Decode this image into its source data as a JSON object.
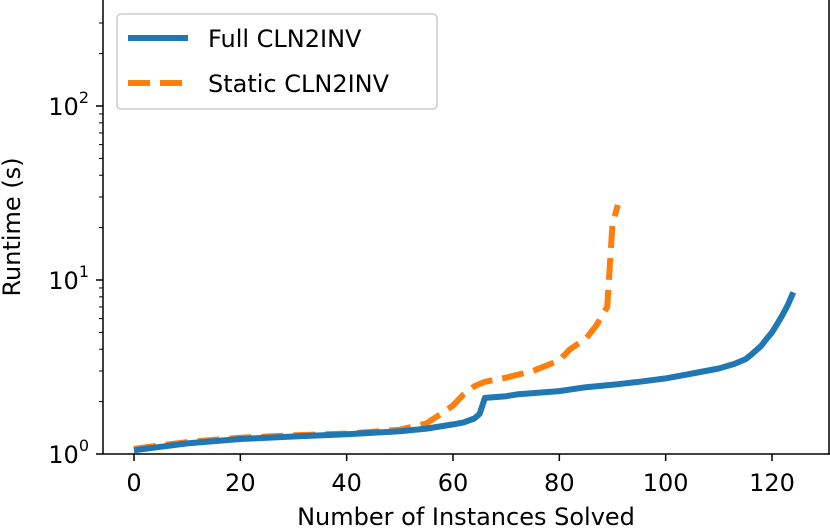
{
  "chart_data": {
    "type": "line",
    "title": "",
    "xlabel": "Number of Instances Solved",
    "ylabel": "Runtime (s)",
    "xlim": [
      -5,
      130
    ],
    "ylim": [
      1,
      400
    ],
    "yscale": "log",
    "x_ticks": [
      0,
      20,
      40,
      60,
      80,
      100,
      120
    ],
    "x_tick_labels": [
      "0",
      "20",
      "40",
      "60",
      "80",
      "100",
      "120"
    ],
    "y_ticks": [
      {
        "value": 1,
        "base": "10",
        "exp": "0"
      },
      {
        "value": 10,
        "base": "10",
        "exp": "1"
      },
      {
        "value": 100,
        "base": "10",
        "exp": "2"
      }
    ],
    "legend_position": "top-left",
    "series": [
      {
        "name": "Full CLN2INV",
        "color": "#1f77b4",
        "dash": "solid",
        "x": [
          0,
          5,
          10,
          20,
          30,
          40,
          50,
          55,
          60,
          62,
          64,
          65,
          66,
          70,
          72,
          80,
          85,
          90,
          95,
          100,
          105,
          110,
          113,
          115,
          116,
          118,
          119,
          120,
          121,
          122,
          123,
          124
        ],
        "y": [
          1.05,
          1.1,
          1.15,
          1.22,
          1.26,
          1.3,
          1.35,
          1.4,
          1.48,
          1.52,
          1.6,
          1.7,
          2.1,
          2.15,
          2.2,
          2.3,
          2.42,
          2.5,
          2.6,
          2.72,
          2.9,
          3.1,
          3.3,
          3.5,
          3.7,
          4.2,
          4.6,
          5.0,
          5.6,
          6.3,
          7.2,
          8.5
        ]
      },
      {
        "name": "Static CLN2INV",
        "color": "#ff7f0e",
        "dash": "dashed",
        "x": [
          0,
          5,
          10,
          20,
          30,
          40,
          50,
          55,
          58,
          60,
          62,
          64,
          66,
          70,
          75,
          80,
          82,
          85,
          87,
          89,
          90,
          91
        ],
        "y": [
          1.07,
          1.12,
          1.17,
          1.24,
          1.28,
          1.31,
          1.38,
          1.5,
          1.72,
          1.9,
          2.2,
          2.45,
          2.6,
          2.75,
          3.0,
          3.45,
          4.0,
          4.6,
          5.5,
          7.0,
          21.0,
          27.0
        ]
      }
    ]
  }
}
